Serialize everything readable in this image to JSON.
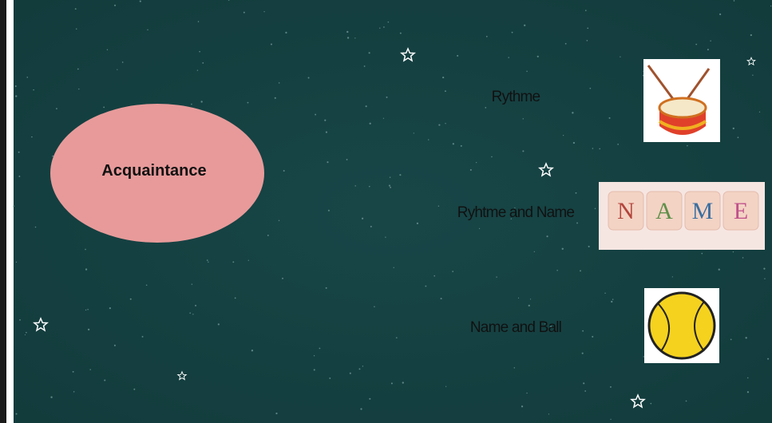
{
  "slide": {
    "center": "Acquaintance",
    "items": [
      {
        "label": "Rythme"
      },
      {
        "label": "Ryhtme and Name"
      },
      {
        "label": "Name and Ball"
      }
    ],
    "name_tiles": [
      "N",
      "A",
      "M",
      "E"
    ]
  }
}
